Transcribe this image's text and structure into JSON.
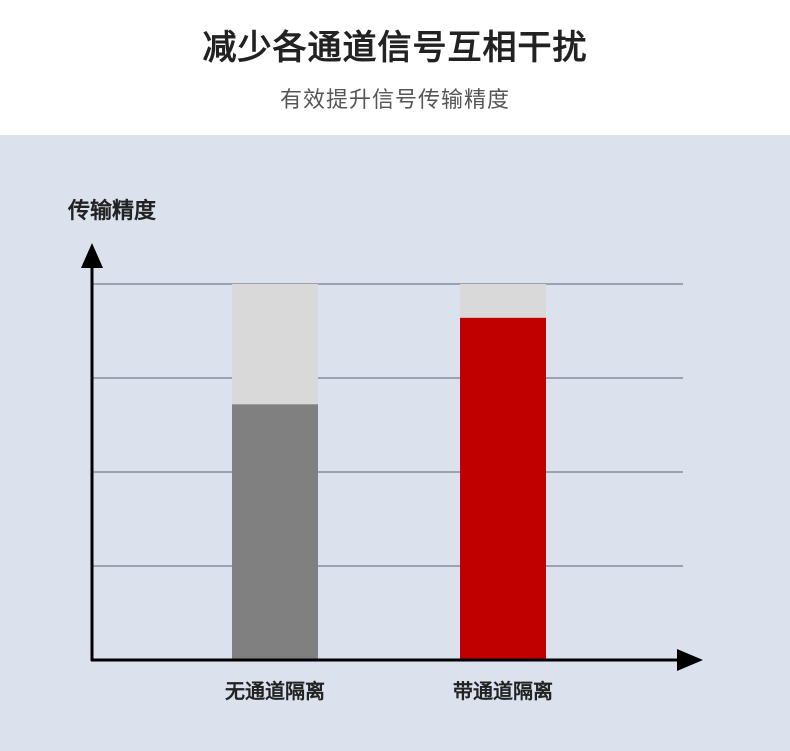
{
  "header": {
    "title": "减少各通道信号互相干扰",
    "subtitle": "有效提升信号传输精度"
  },
  "chart_data": {
    "type": "bar",
    "stacked_background": true,
    "ylabel": "传输精度",
    "xlabel": "",
    "categories": [
      "无通道隔离",
      "带通道隔离"
    ],
    "values": [
      68,
      91
    ],
    "ylim": [
      0,
      100
    ],
    "gridlines": [
      25,
      50,
      75,
      100
    ],
    "grid": true,
    "tick_labels_shown": false,
    "colors": {
      "bars": [
        "#808080",
        "#c00000"
      ],
      "remainder": "#d9d9d9",
      "grid": "#9ba3b2",
      "background": "#dbe2ee",
      "axis": "#000000"
    }
  }
}
